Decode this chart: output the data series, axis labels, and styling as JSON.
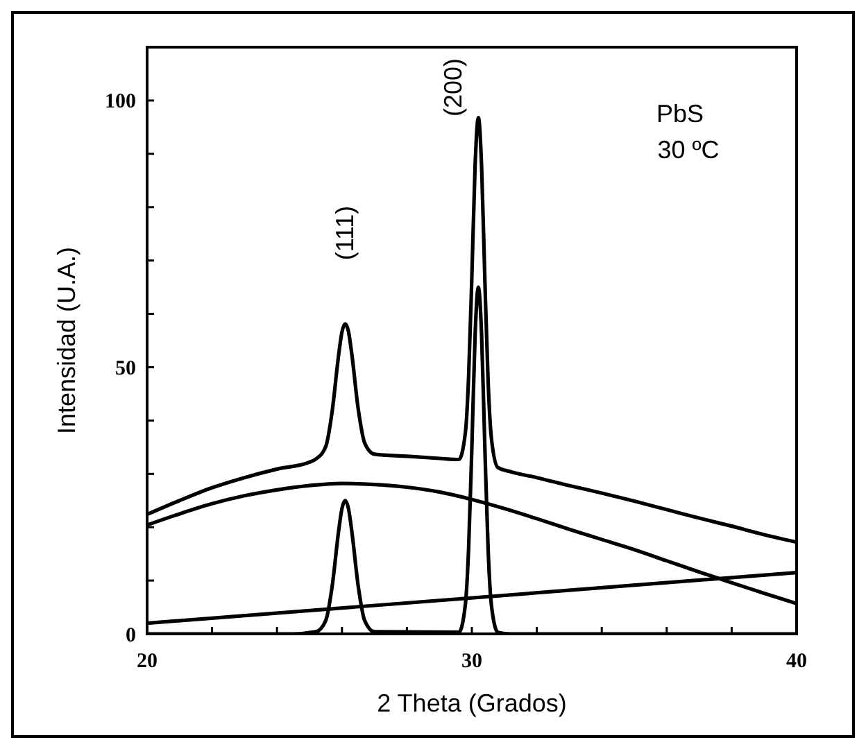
{
  "chart_data": {
    "type": "line",
    "xlabel": "2 Theta (Grados)",
    "ylabel": "Intensidad (U.A.)",
    "xlim": [
      20,
      40
    ],
    "ylim": [
      0,
      110
    ],
    "xticks": [
      20,
      {
        "value": 22,
        "label": null
      },
      {
        "value": 24,
        "label": null
      },
      {
        "value": 26,
        "label": null
      },
      {
        "value": 28,
        "label": null
      },
      30,
      {
        "value": 32,
        "label": null
      },
      {
        "value": 34,
        "label": null
      },
      {
        "value": 36,
        "label": null
      },
      {
        "value": 38,
        "label": null
      },
      40
    ],
    "yticks": [
      0,
      {
        "value": 10,
        "label": null
      },
      {
        "value": 20,
        "label": null
      },
      {
        "value": 30,
        "label": null
      },
      {
        "value": 40,
        "label": null
      },
      50,
      {
        "value": 60,
        "label": null
      },
      {
        "value": 70,
        "label": null
      },
      {
        "value": 80,
        "label": null
      },
      {
        "value": 90,
        "label": null
      },
      100
    ],
    "grid": false,
    "marker": "none",
    "line_style": "solid",
    "series": [
      {
        "color": "#000000",
        "x": [
          20,
          21,
          22,
          23,
          24,
          25,
          25.2,
          25.5,
          25.7,
          25.9,
          26.0,
          26.1,
          26.2,
          26.3,
          26.5,
          26.7,
          27,
          28,
          29,
          29.6,
          29.8,
          29.9,
          30,
          30.1,
          30.2,
          30.3,
          30.4,
          30.5,
          30.6,
          30.8,
          31.2,
          32,
          33,
          34,
          35,
          36,
          37,
          38,
          39,
          40
        ],
        "values": [
          22.4,
          25,
          27.4,
          29.3,
          30.9,
          32.2,
          32.8,
          35.1,
          41.8,
          52.4,
          56.6,
          58.1,
          56.7,
          52.6,
          42.2,
          35.8,
          33.7,
          33.3,
          32.9,
          32.7,
          37.7,
          48.2,
          67,
          87.8,
          96.8,
          87.6,
          66.5,
          47.4,
          36.8,
          31.2,
          30.4,
          29.3,
          27.8,
          26.4,
          24.9,
          23.3,
          21.7,
          20.2,
          18.6,
          17.2
        ]
      },
      {
        "color": "#000000",
        "x": [
          20,
          21,
          22,
          23,
          24,
          25,
          26,
          27,
          28,
          29,
          30,
          31,
          32,
          33,
          34,
          35,
          36,
          37,
          38,
          39,
          40
        ],
        "values": [
          20.4,
          22.5,
          24.4,
          25.9,
          27,
          27.8,
          28.2,
          28,
          27.5,
          26.6,
          25.2,
          23.5,
          21.6,
          19.6,
          17.7,
          15.8,
          13.7,
          11.6,
          9.6,
          7.6,
          5.7
        ]
      },
      {
        "color": "#000000",
        "x": [
          20,
          40
        ],
        "values": [
          2,
          11.5
        ]
      },
      {
        "color": "#000000",
        "x": [
          20,
          24.5,
          25.2,
          25.5,
          25.7,
          25.9,
          26.0,
          26.1,
          26.2,
          26.3,
          26.5,
          26.7,
          27.0,
          29.6,
          29.8,
          29.9,
          30.0,
          30.1,
          30.2,
          30.3,
          30.4,
          30.5,
          30.6,
          30.8,
          31.2,
          40
        ],
        "values": [
          0,
          0,
          0.4,
          2.5,
          9,
          19.4,
          23.5,
          25,
          23.5,
          19.4,
          9,
          2.5,
          0.4,
          0.3,
          5.5,
          16,
          35,
          56,
          65,
          56,
          35,
          16,
          5.5,
          0.3,
          0,
          0
        ]
      }
    ],
    "annotations": [
      "(111)",
      "(200)",
      "PbS",
      "30 ºC"
    ]
  }
}
